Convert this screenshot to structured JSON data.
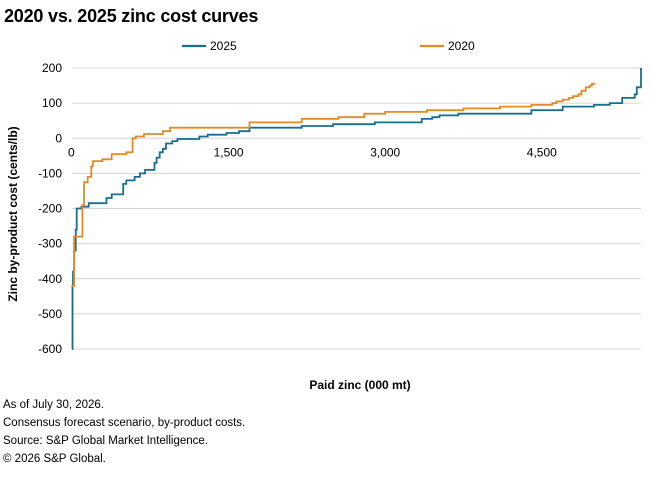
{
  "title": "2020 vs. 2025 zinc cost curves",
  "footnotes": [
    "As of July 30, 2026.",
    "Consensus forecast scenario, by-product costs.",
    "Source: S&P Global Market Intelligence.",
    "© 2026 S&P Global."
  ],
  "colors": {
    "2025": "#1a6e8c",
    "2020": "#e08a2a",
    "grid": "#d4d4d4"
  },
  "chart_data": {
    "type": "line",
    "title": "2020 vs. 2025 zinc cost curves",
    "xlabel": "Paid zinc (000 mt)",
    "ylabel": "Zinc by-product cost (cents/lb)",
    "xlim": [
      0,
      5450
    ],
    "ylim": [
      -600,
      200
    ],
    "x_ticks": [
      0,
      1500,
      3000,
      4500
    ],
    "x_tick_labels": [
      "0",
      "1,500",
      "3,000",
      "4,500"
    ],
    "y_ticks": [
      200,
      100,
      0,
      -100,
      -200,
      -300,
      -400,
      -500,
      -600
    ],
    "y_tick_labels": [
      "200",
      "100",
      "0",
      "-100",
      "-200",
      "-300",
      "-400",
      "-500",
      "-600"
    ],
    "grid": true,
    "legend_position": "top",
    "series": [
      {
        "name": "2025",
        "color": "#1a6e8c",
        "points": [
          [
            0,
            -600
          ],
          [
            5,
            -420
          ],
          [
            10,
            -380
          ],
          [
            20,
            -320
          ],
          [
            35,
            -260
          ],
          [
            45,
            -200
          ],
          [
            90,
            -195
          ],
          [
            160,
            -185
          ],
          [
            330,
            -170
          ],
          [
            380,
            -160
          ],
          [
            490,
            -130
          ],
          [
            520,
            -120
          ],
          [
            600,
            -110
          ],
          [
            650,
            -100
          ],
          [
            700,
            -90
          ],
          [
            790,
            -70
          ],
          [
            810,
            -55
          ],
          [
            840,
            -40
          ],
          [
            870,
            -30
          ],
          [
            900,
            -15
          ],
          [
            960,
            -8
          ],
          [
            1010,
            -2
          ],
          [
            1220,
            5
          ],
          [
            1300,
            10
          ],
          [
            1480,
            15
          ],
          [
            1600,
            20
          ],
          [
            1700,
            30
          ],
          [
            2200,
            35
          ],
          [
            2500,
            40
          ],
          [
            2900,
            45
          ],
          [
            3350,
            55
          ],
          [
            3450,
            60
          ],
          [
            3520,
            65
          ],
          [
            3700,
            70
          ],
          [
            4400,
            80
          ],
          [
            4700,
            90
          ],
          [
            5000,
            95
          ],
          [
            5150,
            100
          ],
          [
            5270,
            115
          ],
          [
            5390,
            125
          ],
          [
            5410,
            145
          ],
          [
            5450,
            150
          ],
          [
            5450,
            200
          ]
        ]
      },
      {
        "name": "2020",
        "color": "#e08a2a",
        "points": [
          [
            0,
            -420
          ],
          [
            20,
            -280
          ],
          [
            100,
            -190
          ],
          [
            115,
            -125
          ],
          [
            150,
            -110
          ],
          [
            185,
            -80
          ],
          [
            200,
            -65
          ],
          [
            290,
            -60
          ],
          [
            380,
            -45
          ],
          [
            520,
            -40
          ],
          [
            580,
            0
          ],
          [
            610,
            5
          ],
          [
            690,
            12
          ],
          [
            870,
            20
          ],
          [
            940,
            30
          ],
          [
            1700,
            45
          ],
          [
            2200,
            55
          ],
          [
            2550,
            60
          ],
          [
            2800,
            70
          ],
          [
            3000,
            75
          ],
          [
            3400,
            80
          ],
          [
            3750,
            85
          ],
          [
            4100,
            90
          ],
          [
            4400,
            95
          ],
          [
            4600,
            100
          ],
          [
            4640,
            105
          ],
          [
            4700,
            110
          ],
          [
            4760,
            115
          ],
          [
            4800,
            120
          ],
          [
            4850,
            125
          ],
          [
            4880,
            135
          ],
          [
            4920,
            145
          ],
          [
            4960,
            150
          ],
          [
            4980,
            155
          ],
          [
            5010,
            155
          ]
        ]
      }
    ]
  }
}
